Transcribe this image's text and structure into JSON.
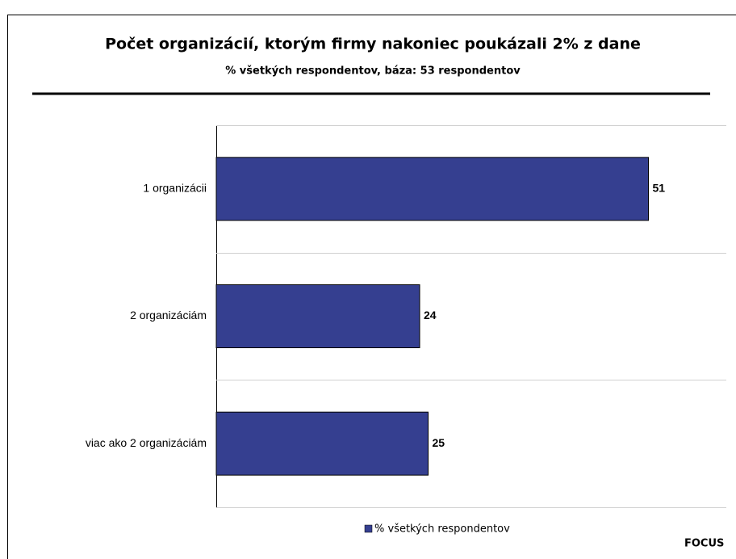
{
  "chart_data": {
    "type": "bar",
    "orientation": "horizontal",
    "title": "Počet organizácií, ktorým firmy nakoniec poukázali 2% z dane",
    "subtitle": "% všetkých respondentov, báza: 53 respondentov",
    "categories": [
      "1 organizácii",
      "2 organizáciám",
      "viac ako 2 organizáciám"
    ],
    "series": [
      {
        "name": "% všetkých respondentov",
        "color": "#353f90",
        "values": [
          51,
          24,
          25
        ]
      }
    ],
    "xlim": [
      0,
      60
    ],
    "legend": "bottom",
    "source": "FOCUS"
  }
}
